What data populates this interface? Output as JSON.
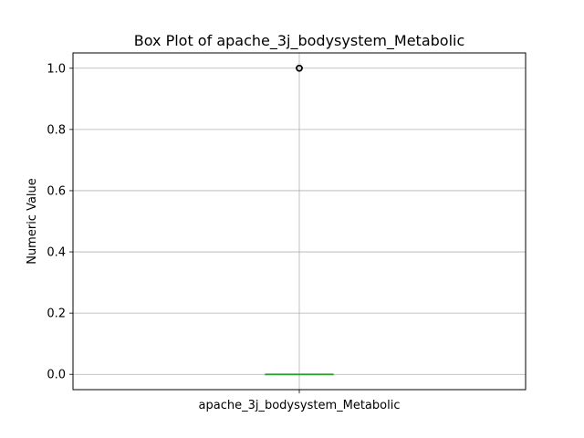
{
  "chart_data": {
    "type": "box",
    "title": "Box Plot of apache_3j_bodysystem_Metabolic",
    "xlabel": "",
    "ylabel": "Numeric Value",
    "categories": [
      "apache_3j_bodysystem_Metabolic"
    ],
    "boxes": [
      {
        "name": "apache_3j_bodysystem_Metabolic",
        "min": 0.0,
        "q1": 0.0,
        "median": 0.0,
        "q3": 0.0,
        "max": 0.0,
        "outliers": [
          1.0
        ]
      }
    ],
    "ylim": [
      -0.05,
      1.05
    ],
    "yticks": [
      0.0,
      0.2,
      0.4,
      0.6,
      0.8,
      1.0
    ],
    "ytick_labels": [
      "0.0",
      "0.2",
      "0.4",
      "0.6",
      "0.8",
      "1.0"
    ],
    "grid": true,
    "colors": {
      "box": "#1f77b4",
      "median": "#2ca02c",
      "whisker": "#1f77b4",
      "outlier": "#000000",
      "grid": "#b0b0b0",
      "axes": "#000000"
    }
  }
}
